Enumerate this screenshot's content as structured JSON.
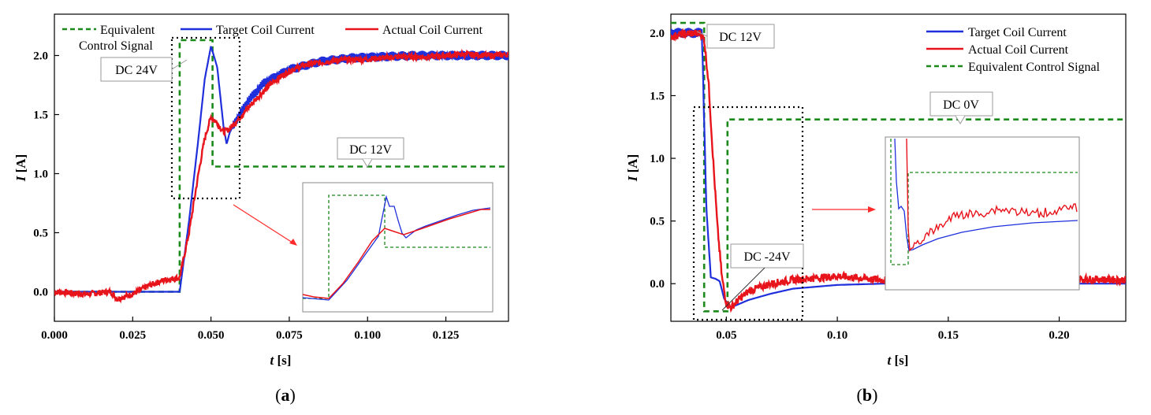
{
  "chart_data": [
    {
      "panel": "a",
      "type": "line",
      "caption": {
        "open": "(",
        "letter": "a",
        "close": ")"
      },
      "xlabel": {
        "var": "t",
        "unit": " [s]"
      },
      "ylabel": {
        "var": "I",
        "unit": " [A]"
      },
      "xlim": [
        0.0,
        0.145
      ],
      "ylim": [
        -0.25,
        2.35
      ],
      "xticks": [
        0.0,
        0.025,
        0.05,
        0.075,
        0.1,
        0.125
      ],
      "xtick_labels": [
        "0.000",
        "0.025",
        "0.050",
        "0.075",
        "0.100",
        "0.125"
      ],
      "yticks": [
        0.0,
        0.5,
        1.0,
        1.5,
        2.0
      ],
      "ytick_labels": [
        "0.0",
        "0.5",
        "1.0",
        "1.5",
        "2.0"
      ],
      "legend": {
        "placement": "top",
        "entries": [
          "Equivalent",
          "Control Signal",
          "Target Coil Current",
          "Actual Coil Current"
        ]
      },
      "series": [
        {
          "name": "Equivalent Control Signal",
          "color": "#1b8a1b",
          "style": "dashed",
          "x": [
            0.0,
            0.04,
            0.04,
            0.0505,
            0.0505,
            0.145
          ],
          "y": [
            0.0,
            0.0,
            2.13,
            2.13,
            1.06,
            1.06
          ]
        },
        {
          "name": "Target Coil Current",
          "color": "#1f2fdc",
          "style": "solid",
          "x": [
            0.0,
            0.04,
            0.043,
            0.046,
            0.048,
            0.05,
            0.052,
            0.054,
            0.055,
            0.056,
            0.058,
            0.062,
            0.067,
            0.075,
            0.085,
            0.095,
            0.105,
            0.115,
            0.125,
            0.135,
            0.145
          ],
          "y": [
            0.0,
            0.0,
            0.6,
            1.3,
            1.8,
            2.08,
            1.9,
            1.4,
            1.25,
            1.35,
            1.45,
            1.62,
            1.77,
            1.88,
            1.95,
            1.98,
            1.99,
            2.0,
            2.0,
            2.0,
            2.0
          ],
          "ripple": 0.04
        },
        {
          "name": "Actual Coil Current",
          "color": "#e8141c",
          "style": "solid",
          "x": [
            0.0,
            0.01,
            0.018,
            0.02,
            0.025,
            0.03,
            0.035,
            0.04,
            0.043,
            0.046,
            0.048,
            0.05,
            0.052,
            0.054,
            0.056,
            0.06,
            0.065,
            0.07,
            0.075,
            0.08,
            0.09,
            0.1,
            0.11,
            0.12,
            0.13,
            0.14,
            0.145
          ],
          "y": [
            0.0,
            -0.02,
            0.0,
            -0.06,
            -0.02,
            0.05,
            0.1,
            0.12,
            0.5,
            1.0,
            1.3,
            1.48,
            1.43,
            1.35,
            1.38,
            1.5,
            1.65,
            1.78,
            1.87,
            1.92,
            1.96,
            1.97,
            1.99,
            1.99,
            2.01,
            2.0,
            2.01
          ],
          "noise": 0.025
        }
      ],
      "annotations": [
        {
          "text": "DC 24V",
          "x": 0.0485,
          "y": 2.05
        },
        {
          "text": "DC 12V",
          "x": 0.1,
          "y": 1.12
        }
      ],
      "inset": {
        "note": "zoom of the dotted region 0.0375–0.059 s"
      }
    },
    {
      "panel": "b",
      "type": "line",
      "caption": {
        "open": "(",
        "letter": "b",
        "close": ")"
      },
      "xlabel": {
        "var": "t",
        "unit": " [s]"
      },
      "ylabel": {
        "var": "I",
        "unit": " [A]"
      },
      "xlim": [
        0.025,
        0.23
      ],
      "ylim": [
        -0.3,
        2.15
      ],
      "xticks": [
        0.05,
        0.1,
        0.15,
        0.2
      ],
      "xtick_labels": [
        "0.05",
        "0.10",
        "0.15",
        "0.20"
      ],
      "yticks": [
        0.0,
        0.5,
        1.0,
        1.5,
        2.0
      ],
      "ytick_labels": [
        "0.0",
        "0.5",
        "1.0",
        "1.5",
        "2.0"
      ],
      "legend": {
        "placement": "top-right",
        "entries": [
          "Target Coil Current",
          "Actual Coil Current",
          "Equivalent Control Signal"
        ]
      },
      "series": [
        {
          "name": "Equivalent Control Signal",
          "color": "#1b8a1b",
          "style": "dashed",
          "x": [
            0.025,
            0.04,
            0.04,
            0.0505,
            0.0505,
            0.23
          ],
          "y": [
            2.08,
            2.08,
            -0.22,
            -0.22,
            1.31,
            1.31
          ]
        },
        {
          "name": "Target Coil Current",
          "color": "#1f2fdc",
          "style": "solid",
          "x": [
            0.025,
            0.039,
            0.041,
            0.043,
            0.045,
            0.047,
            0.049,
            0.052,
            0.06,
            0.07,
            0.08,
            0.1,
            0.12,
            0.15,
            0.2,
            0.23
          ],
          "y": [
            2.0,
            2.0,
            0.6,
            0.05,
            0.04,
            0.02,
            -0.12,
            -0.19,
            -0.13,
            -0.08,
            -0.04,
            -0.01,
            0.0,
            0.0,
            0.0,
            0.0
          ],
          "ripple": 0.04,
          "ripple_until": 0.04
        },
        {
          "name": "Actual Coil Current",
          "color": "#e8141c",
          "style": "solid",
          "x": [
            0.025,
            0.03,
            0.038,
            0.04,
            0.042,
            0.044,
            0.046,
            0.048,
            0.05,
            0.052,
            0.056,
            0.06,
            0.07,
            0.08,
            0.1,
            0.12,
            0.15,
            0.18,
            0.2,
            0.23
          ],
          "y": [
            1.97,
            1.99,
            2.0,
            1.95,
            1.6,
            1.0,
            0.45,
            0.05,
            -0.16,
            -0.19,
            -0.12,
            -0.06,
            0.0,
            0.03,
            0.06,
            0.03,
            0.05,
            0.06,
            0.04,
            0.03
          ],
          "noise": 0.03
        }
      ],
      "annotations": [
        {
          "text": "DC 12V",
          "x": 0.043,
          "y": 2.03
        },
        {
          "text": "DC 0V",
          "x": 0.09,
          "y": 1.45
        },
        {
          "text": "DC -24V",
          "x": 0.065,
          "y": 0.45
        }
      ],
      "inset": {
        "note": "zoom of the dotted region 0.036–0.085 s"
      }
    }
  ]
}
